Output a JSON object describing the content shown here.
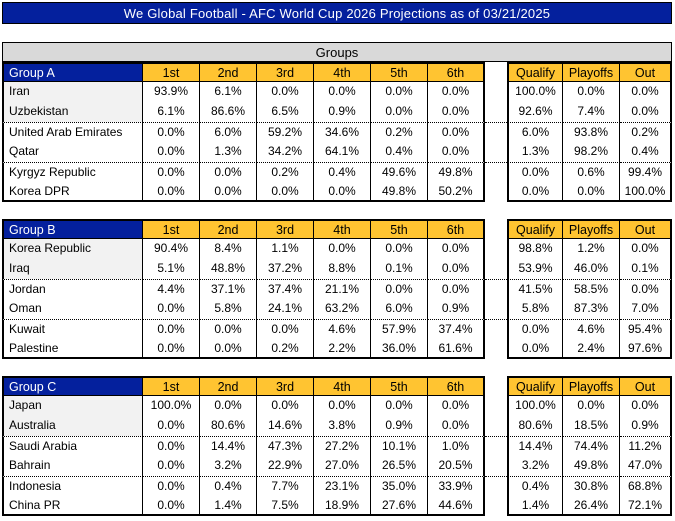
{
  "title": "We Global Football - AFC World Cup 2026 Projections as of 03/21/2025",
  "section_header": "Groups",
  "position_headers": [
    "1st",
    "2nd",
    "3rd",
    "4th",
    "5th",
    "6th"
  ],
  "outcome_headers": [
    "Qualify",
    "Playoffs",
    "Out"
  ],
  "colors": {
    "header_blue": "#04209D",
    "header_gold": "#FFC431",
    "banner_gray": "#D9D9D9",
    "qualified_name_shade": "#F2F2F2",
    "border_black": "#000000"
  },
  "groups": [
    {
      "name": "Group A",
      "teams": [
        {
          "team": "Iran",
          "positions": [
            "93.9%",
            "6.1%",
            "0.0%",
            "0.0%",
            "0.0%",
            "0.0%"
          ],
          "outcomes": [
            "100.0%",
            "0.0%",
            "0.0%"
          ]
        },
        {
          "team": "Uzbekistan",
          "positions": [
            "6.1%",
            "86.6%",
            "6.5%",
            "0.9%",
            "0.0%",
            "0.0%"
          ],
          "outcomes": [
            "92.6%",
            "7.4%",
            "0.0%"
          ]
        },
        {
          "team": "United Arab Emirates",
          "positions": [
            "0.0%",
            "6.0%",
            "59.2%",
            "34.6%",
            "0.2%",
            "0.0%"
          ],
          "outcomes": [
            "6.0%",
            "93.8%",
            "0.2%"
          ]
        },
        {
          "team": "Qatar",
          "positions": [
            "0.0%",
            "1.3%",
            "34.2%",
            "64.1%",
            "0.4%",
            "0.0%"
          ],
          "outcomes": [
            "1.3%",
            "98.2%",
            "0.4%"
          ]
        },
        {
          "team": "Kyrgyz Republic",
          "positions": [
            "0.0%",
            "0.0%",
            "0.2%",
            "0.4%",
            "49.6%",
            "49.8%"
          ],
          "outcomes": [
            "0.0%",
            "0.6%",
            "99.4%"
          ]
        },
        {
          "team": "Korea DPR",
          "positions": [
            "0.0%",
            "0.0%",
            "0.0%",
            "0.0%",
            "49.8%",
            "50.2%"
          ],
          "outcomes": [
            "0.0%",
            "0.0%",
            "100.0%"
          ]
        }
      ]
    },
    {
      "name": "Group B",
      "teams": [
        {
          "team": "Korea Republic",
          "positions": [
            "90.4%",
            "8.4%",
            "1.1%",
            "0.0%",
            "0.0%",
            "0.0%"
          ],
          "outcomes": [
            "98.8%",
            "1.2%",
            "0.0%"
          ]
        },
        {
          "team": "Iraq",
          "positions": [
            "5.1%",
            "48.8%",
            "37.2%",
            "8.8%",
            "0.1%",
            "0.0%"
          ],
          "outcomes": [
            "53.9%",
            "46.0%",
            "0.1%"
          ]
        },
        {
          "team": "Jordan",
          "positions": [
            "4.4%",
            "37.1%",
            "37.4%",
            "21.1%",
            "0.0%",
            "0.0%"
          ],
          "outcomes": [
            "41.5%",
            "58.5%",
            "0.0%"
          ]
        },
        {
          "team": "Oman",
          "positions": [
            "0.0%",
            "5.8%",
            "24.1%",
            "63.2%",
            "6.0%",
            "0.9%"
          ],
          "outcomes": [
            "5.8%",
            "87.3%",
            "7.0%"
          ]
        },
        {
          "team": "Kuwait",
          "positions": [
            "0.0%",
            "0.0%",
            "0.0%",
            "4.6%",
            "57.9%",
            "37.4%"
          ],
          "outcomes": [
            "0.0%",
            "4.6%",
            "95.4%"
          ]
        },
        {
          "team": "Palestine",
          "positions": [
            "0.0%",
            "0.0%",
            "0.2%",
            "2.2%",
            "36.0%",
            "61.6%"
          ],
          "outcomes": [
            "0.0%",
            "2.4%",
            "97.6%"
          ]
        }
      ]
    },
    {
      "name": "Group C",
      "teams": [
        {
          "team": "Japan",
          "positions": [
            "100.0%",
            "0.0%",
            "0.0%",
            "0.0%",
            "0.0%",
            "0.0%"
          ],
          "outcomes": [
            "100.0%",
            "0.0%",
            "0.0%"
          ]
        },
        {
          "team": "Australia",
          "positions": [
            "0.0%",
            "80.6%",
            "14.6%",
            "3.8%",
            "0.9%",
            "0.0%"
          ],
          "outcomes": [
            "80.6%",
            "18.5%",
            "0.9%"
          ]
        },
        {
          "team": "Saudi Arabia",
          "positions": [
            "0.0%",
            "14.4%",
            "47.3%",
            "27.2%",
            "10.1%",
            "1.0%"
          ],
          "outcomes": [
            "14.4%",
            "74.4%",
            "11.2%"
          ]
        },
        {
          "team": "Bahrain",
          "positions": [
            "0.0%",
            "3.2%",
            "22.9%",
            "27.0%",
            "26.5%",
            "20.5%"
          ],
          "outcomes": [
            "3.2%",
            "49.8%",
            "47.0%"
          ]
        },
        {
          "team": "Indonesia",
          "positions": [
            "0.0%",
            "0.4%",
            "7.7%",
            "23.1%",
            "35.0%",
            "33.9%"
          ],
          "outcomes": [
            "0.4%",
            "30.8%",
            "68.8%"
          ]
        },
        {
          "team": "China PR",
          "positions": [
            "0.0%",
            "1.4%",
            "7.5%",
            "18.9%",
            "27.6%",
            "44.6%"
          ],
          "outcomes": [
            "1.4%",
            "26.4%",
            "72.1%"
          ]
        }
      ]
    }
  ]
}
